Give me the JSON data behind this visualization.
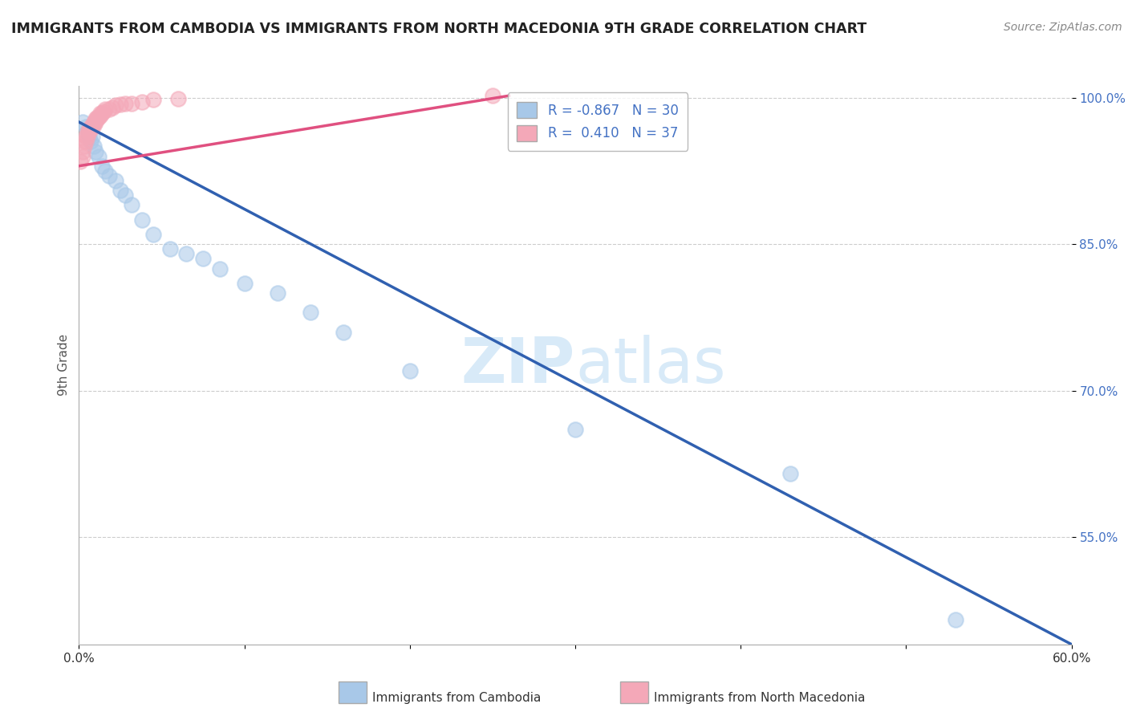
{
  "title": "IMMIGRANTS FROM CAMBODIA VS IMMIGRANTS FROM NORTH MACEDONIA 9TH GRADE CORRELATION CHART",
  "source": "Source: ZipAtlas.com",
  "ylabel": "9th Grade",
  "xlabel_blue": "Immigrants from Cambodia",
  "xlabel_pink": "Immigrants from North Macedonia",
  "r_blue": -0.867,
  "n_blue": 30,
  "r_pink": 0.41,
  "n_pink": 37,
  "blue_color": "#a8c8e8",
  "pink_color": "#f4a8b8",
  "blue_line_color": "#3060b0",
  "pink_line_color": "#e05080",
  "watermark_color": "#d8eaf8",
  "xmin": 0.0,
  "xmax": 0.6,
  "ymin": 0.44,
  "ymax": 1.012,
  "ytick_positions": [
    0.55,
    0.7,
    0.85,
    1.0
  ],
  "ytick_labels": [
    "55.0%",
    "70.0%",
    "85.0%",
    "100.0%"
  ],
  "blue_x": [
    0.002,
    0.004,
    0.005,
    0.006,
    0.007,
    0.008,
    0.009,
    0.01,
    0.012,
    0.014,
    0.016,
    0.018,
    0.022,
    0.025,
    0.028,
    0.032,
    0.038,
    0.045,
    0.055,
    0.065,
    0.075,
    0.085,
    0.1,
    0.12,
    0.14,
    0.16,
    0.2,
    0.3,
    0.43,
    0.53
  ],
  "blue_y": [
    0.975,
    0.97,
    0.965,
    0.96,
    0.955,
    0.96,
    0.95,
    0.945,
    0.94,
    0.93,
    0.925,
    0.92,
    0.915,
    0.905,
    0.9,
    0.89,
    0.875,
    0.86,
    0.845,
    0.84,
    0.835,
    0.825,
    0.81,
    0.8,
    0.78,
    0.76,
    0.72,
    0.66,
    0.615,
    0.465
  ],
  "pink_x": [
    0.001,
    0.002,
    0.002,
    0.003,
    0.003,
    0.004,
    0.004,
    0.005,
    0.005,
    0.006,
    0.006,
    0.007,
    0.007,
    0.008,
    0.008,
    0.009,
    0.009,
    0.01,
    0.01,
    0.011,
    0.011,
    0.012,
    0.013,
    0.013,
    0.014,
    0.015,
    0.016,
    0.018,
    0.02,
    0.022,
    0.025,
    0.028,
    0.032,
    0.038,
    0.045,
    0.06,
    0.25
  ],
  "pink_y": [
    0.935,
    0.94,
    0.945,
    0.95,
    0.955,
    0.955,
    0.96,
    0.96,
    0.965,
    0.965,
    0.968,
    0.968,
    0.97,
    0.97,
    0.972,
    0.972,
    0.975,
    0.975,
    0.978,
    0.978,
    0.98,
    0.98,
    0.982,
    0.984,
    0.984,
    0.986,
    0.988,
    0.988,
    0.99,
    0.992,
    0.993,
    0.994,
    0.994,
    0.996,
    0.998,
    0.999,
    1.002
  ],
  "blue_line_x0": 0.0,
  "blue_line_x1": 0.6,
  "blue_line_y0": 0.975,
  "blue_line_y1": 0.44,
  "pink_line_x0": 0.0,
  "pink_line_x1": 0.26,
  "pink_line_y0": 0.93,
  "pink_line_y1": 1.002
}
